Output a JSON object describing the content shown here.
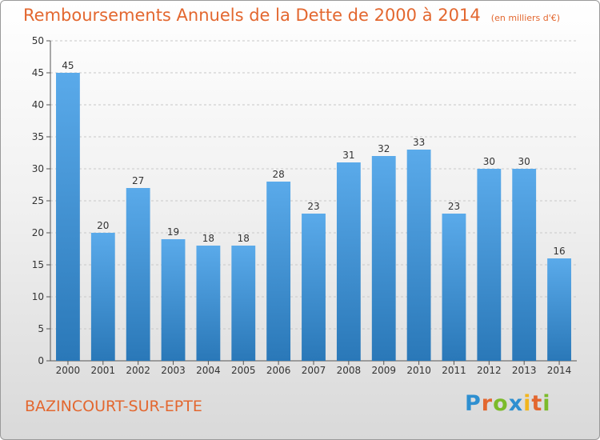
{
  "title": "Remboursements Annuels de la Dette de 2000 à 2014",
  "unit": "(en milliers d'€)",
  "commune": "BAZINCOURT-SUR-EPTE",
  "logo": {
    "letters": [
      "P",
      "r",
      "o",
      "x",
      "i",
      "t",
      "i"
    ],
    "colors": [
      "#2e8fd0",
      "#e3672f",
      "#7cbb2a",
      "#2e8fd0",
      "#f2b51d",
      "#e3672f",
      "#7cbb2a"
    ]
  },
  "colors": {
    "bar_top": "#5aaaea",
    "bar_bottom": "#2a78b8",
    "title": "#e3672f",
    "grid": "#c8c8c8",
    "axis": "#555555"
  },
  "chart_data": {
    "type": "bar",
    "title": "Remboursements Annuels de la Dette de 2000 à 2014",
    "xlabel": "",
    "ylabel": "",
    "categories": [
      "2000",
      "2001",
      "2002",
      "2003",
      "2004",
      "2005",
      "2006",
      "2007",
      "2008",
      "2009",
      "2010",
      "2011",
      "2012",
      "2013",
      "2014"
    ],
    "values": [
      45,
      20,
      27,
      19,
      18,
      18,
      28,
      23,
      31,
      32,
      33,
      23,
      30,
      30,
      16
    ],
    "ylim": [
      0,
      50
    ],
    "yticks": [
      0,
      5,
      10,
      15,
      20,
      25,
      30,
      35,
      40,
      45,
      50
    ],
    "grid": true
  }
}
